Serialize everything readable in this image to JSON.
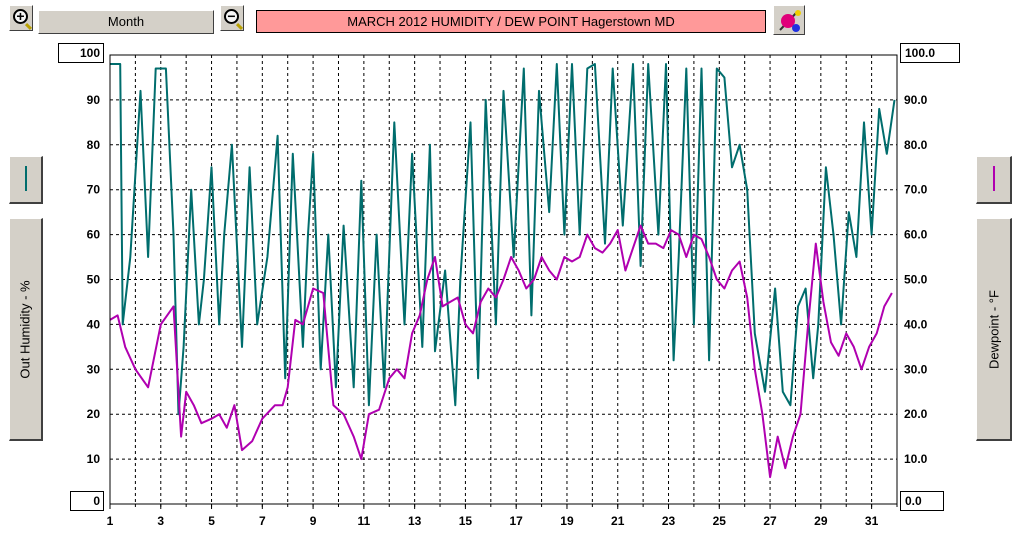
{
  "toolbar": {
    "zoom_in_icon": "zoom-in-icon",
    "zoom_out_icon": "zoom-out-icon",
    "period_label": "Month",
    "title": "MARCH  2012  HUMIDITY / DEW POINT  Hagerstown MD",
    "tool_icon": "palette-brush-icon"
  },
  "left_axis": {
    "max_label": "100",
    "min_label": "0",
    "title": "Out Humidity - %",
    "color": "#006d6d"
  },
  "right_axis": {
    "max_label": "100.0",
    "min_label": "0.0",
    "title": "Dewpoint - °F",
    "color": "#b000b0"
  },
  "chart_data": {
    "type": "line",
    "xlabel": "",
    "x_tick_labels": [
      "1",
      "3",
      "5",
      "7",
      "9",
      "11",
      "13",
      "15",
      "17",
      "19",
      "21",
      "23",
      "25",
      "27",
      "29",
      "31"
    ],
    "xlim": [
      1,
      32
    ],
    "left_ylim": [
      0,
      100
    ],
    "right_ylim": [
      0,
      100
    ],
    "left_tick_labels": [
      "90",
      "80",
      "70",
      "60",
      "50",
      "40",
      "30",
      "20",
      "10"
    ],
    "right_tick_labels": [
      "90.0",
      "80.0",
      "70.0",
      "60.0",
      "50.0",
      "40.0",
      "30.0",
      "20.0",
      "10.0"
    ],
    "grid": true,
    "series": [
      {
        "axis": "left",
        "color": "#006d6d",
        "x": [
          1.0,
          1.4,
          1.5,
          1.8,
          2.2,
          2.5,
          2.8,
          3.2,
          3.5,
          3.7,
          3.9,
          4.2,
          4.5,
          4.7,
          5.0,
          5.3,
          5.5,
          5.8,
          6.2,
          6.5,
          6.8,
          7.2,
          7.6,
          7.9,
          8.2,
          8.6,
          8.8,
          9.0,
          9.3,
          9.6,
          9.9,
          10.2,
          10.6,
          10.9,
          11.2,
          11.5,
          11.8,
          12.2,
          12.6,
          12.9,
          13.3,
          13.6,
          13.8,
          14.2,
          14.6,
          14.8,
          15.2,
          15.5,
          15.8,
          16.2,
          16.5,
          16.9,
          17.3,
          17.6,
          17.9,
          18.3,
          18.6,
          18.9,
          19.2,
          19.5,
          19.8,
          20.1,
          20.5,
          20.8,
          21.2,
          21.6,
          21.9,
          22.2,
          22.6,
          22.9,
          23.2,
          23.4,
          23.7,
          24.0,
          24.3,
          24.6,
          24.9,
          25.2,
          25.5,
          25.8,
          26.1,
          26.4,
          26.8,
          27.2,
          27.5,
          27.8,
          28.1,
          28.4,
          28.7,
          28.9,
          29.2,
          29.5,
          29.8,
          30.1,
          30.4,
          30.7,
          31.0,
          31.3,
          31.6,
          31.9
        ],
        "y": [
          98,
          98,
          40,
          55,
          92,
          55,
          97,
          97,
          60,
          20,
          35,
          70,
          40,
          50,
          75,
          40,
          60,
          80,
          35,
          75,
          40,
          55,
          82,
          28,
          78,
          35,
          60,
          78,
          30,
          60,
          26,
          62,
          26,
          72,
          22,
          60,
          26,
          85,
          40,
          78,
          35,
          80,
          34,
          52,
          22,
          50,
          85,
          28,
          90,
          40,
          92,
          55,
          97,
          42,
          92,
          65,
          98,
          60,
          98,
          60,
          97,
          98,
          58,
          97,
          62,
          98,
          53,
          98,
          60,
          98,
          32,
          55,
          97,
          40,
          97,
          32,
          97,
          95,
          75,
          80,
          70,
          38,
          25,
          48,
          25,
          22,
          44,
          48,
          28,
          40,
          75,
          60,
          40,
          65,
          55,
          85,
          60,
          88,
          78,
          90
        ]
      },
      {
        "axis": "right",
        "color": "#b000b0",
        "x": [
          1.0,
          1.3,
          1.6,
          2.0,
          2.5,
          3.0,
          3.5,
          3.8,
          4.0,
          4.3,
          4.6,
          5.0,
          5.3,
          5.6,
          5.9,
          6.2,
          6.6,
          7.0,
          7.5,
          7.8,
          8.0,
          8.3,
          8.6,
          9.0,
          9.4,
          9.8,
          10.2,
          10.6,
          10.9,
          11.2,
          11.6,
          12.0,
          12.3,
          12.6,
          12.9,
          13.2,
          13.5,
          13.8,
          14.1,
          14.4,
          14.7,
          15.0,
          15.3,
          15.6,
          15.9,
          16.2,
          16.5,
          16.8,
          17.1,
          17.4,
          17.7,
          18.0,
          18.3,
          18.6,
          18.9,
          19.2,
          19.5,
          19.8,
          20.1,
          20.4,
          20.7,
          21.0,
          21.3,
          21.6,
          21.9,
          22.2,
          22.5,
          22.8,
          23.1,
          23.4,
          23.7,
          24.0,
          24.3,
          24.6,
          24.9,
          25.2,
          25.5,
          25.8,
          26.1,
          26.4,
          26.7,
          27.0,
          27.3,
          27.6,
          27.9,
          28.2,
          28.5,
          28.8,
          29.1,
          29.4,
          29.7,
          30.0,
          30.3,
          30.6,
          30.9,
          31.2,
          31.5,
          31.8
        ],
        "y": [
          41,
          42,
          35,
          30,
          26,
          40,
          44,
          15,
          25,
          22,
          18,
          19,
          20,
          17,
          22,
          12,
          14,
          19,
          22,
          22,
          26,
          41,
          40,
          48,
          47,
          22,
          20,
          15,
          10,
          20,
          21,
          28,
          30,
          28,
          38,
          42,
          50,
          55,
          44,
          45,
          46,
          40,
          38,
          45,
          48,
          46,
          50,
          55,
          52,
          48,
          50,
          55,
          52,
          50,
          55,
          54,
          55,
          60,
          57,
          56,
          58,
          61,
          52,
          57,
          62,
          58,
          58,
          57,
          61,
          60,
          55,
          60,
          59,
          55,
          50,
          48,
          52,
          54,
          46,
          30,
          20,
          6,
          15,
          8,
          15,
          20,
          40,
          58,
          45,
          36,
          33,
          38,
          35,
          30,
          35,
          38,
          44,
          47
        ]
      }
    ]
  }
}
